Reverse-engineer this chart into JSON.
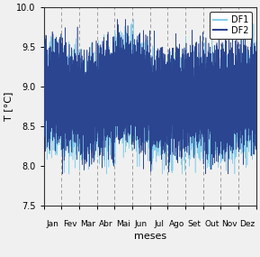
{
  "title": "",
  "xlabel": "meses",
  "ylabel": "T [°C]",
  "ylim": [
    7.5,
    10.0
  ],
  "yticks": [
    7.5,
    8.0,
    8.5,
    9.0,
    9.5,
    10.0
  ],
  "months": [
    "Jan",
    "Fev",
    "Mar",
    "Abr",
    "Mai",
    "Jun",
    "Jul",
    "Ago",
    "Set",
    "Out",
    "Nov",
    "Dez"
  ],
  "color_df1": "#87CEEB",
  "color_df2": "#2B4590",
  "legend_labels": [
    "DF1",
    "DF2"
  ],
  "background_color": "#f0f0f0",
  "plot_bg_color": "#f0f0f0",
  "grid_color": "#666666",
  "n_points_per_month": 365,
  "seed": 42
}
